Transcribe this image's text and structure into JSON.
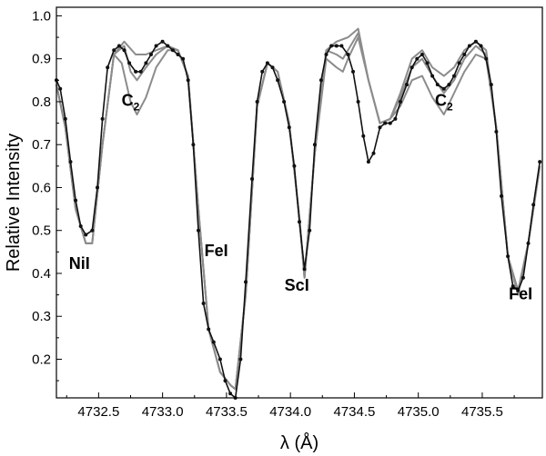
{
  "chart_data": {
    "type": "line",
    "xlabel": "λ (Å)",
    "ylabel": "Relative Intensity",
    "xlim": [
      4732.17,
      4735.97
    ],
    "ylim": [
      0.11,
      1.02
    ],
    "x_ticks": [
      4732.5,
      4733.0,
      4733.5,
      4734.0,
      4734.5,
      4735.0,
      4735.5
    ],
    "x_tick_labels": [
      "4732.5",
      "4733.0",
      "4733.5",
      "4734.0",
      "4734.5",
      "4735.0",
      "4735.5"
    ],
    "y_ticks": [
      0.2,
      0.3,
      0.4,
      0.5,
      0.6,
      0.7,
      0.8,
      0.9,
      1.0
    ],
    "y_tick_labels": [
      "0.2",
      "0.3",
      "0.4",
      "0.5",
      "0.6",
      "0.7",
      "0.8",
      "0.9",
      "1.0"
    ],
    "grid": false,
    "colors": {
      "observed": "#111111",
      "synthetic": "#8c8c8c"
    },
    "annotations": [
      {
        "text": "NiI",
        "x": 4732.35,
        "y": 0.41
      },
      {
        "text": "C",
        "sub": "2",
        "x": 4732.75,
        "y": 0.79
      },
      {
        "text": "FeI",
        "x": 4733.42,
        "y": 0.44
      },
      {
        "text": "ScI",
        "x": 4734.05,
        "y": 0.36
      },
      {
        "text": "C",
        "sub": "2",
        "x": 4735.2,
        "y": 0.79
      },
      {
        "text": "FeI",
        "x": 4735.8,
        "y": 0.34
      }
    ],
    "series": [
      {
        "role": "observed",
        "style": "line-with-dots",
        "points": [
          [
            4732.17,
            0.85
          ],
          [
            4732.2,
            0.83
          ],
          [
            4732.24,
            0.76
          ],
          [
            4732.28,
            0.66
          ],
          [
            4732.32,
            0.57
          ],
          [
            4732.36,
            0.51
          ],
          [
            4732.4,
            0.49
          ],
          [
            4732.45,
            0.5
          ],
          [
            4732.49,
            0.6
          ],
          [
            4732.53,
            0.76
          ],
          [
            4732.57,
            0.88
          ],
          [
            4732.62,
            0.92
          ],
          [
            4732.66,
            0.93
          ],
          [
            4732.7,
            0.92
          ],
          [
            4732.74,
            0.89
          ],
          [
            4732.79,
            0.87
          ],
          [
            4732.83,
            0.87
          ],
          [
            4732.87,
            0.89
          ],
          [
            4732.91,
            0.91
          ],
          [
            4732.95,
            0.93
          ],
          [
            4733.0,
            0.94
          ],
          [
            4733.04,
            0.93
          ],
          [
            4733.08,
            0.92
          ],
          [
            4733.12,
            0.91
          ],
          [
            4733.16,
            0.9
          ],
          [
            4733.2,
            0.85
          ],
          [
            4733.24,
            0.7
          ],
          [
            4733.28,
            0.5
          ],
          [
            4733.32,
            0.33
          ],
          [
            4733.36,
            0.27
          ],
          [
            4733.4,
            0.24
          ],
          [
            4733.45,
            0.2
          ],
          [
            4733.49,
            0.15
          ],
          [
            4733.53,
            0.12
          ],
          [
            4733.57,
            0.11
          ],
          [
            4733.61,
            0.2
          ],
          [
            4733.65,
            0.38
          ],
          [
            4733.7,
            0.62
          ],
          [
            4733.74,
            0.8
          ],
          [
            4733.78,
            0.87
          ],
          [
            4733.82,
            0.89
          ],
          [
            4733.86,
            0.88
          ],
          [
            4733.9,
            0.85
          ],
          [
            4733.95,
            0.8
          ],
          [
            4733.99,
            0.74
          ],
          [
            4734.03,
            0.65
          ],
          [
            4734.07,
            0.52
          ],
          [
            4734.11,
            0.41
          ],
          [
            4734.15,
            0.5
          ],
          [
            4734.19,
            0.7
          ],
          [
            4734.24,
            0.85
          ],
          [
            4734.28,
            0.91
          ],
          [
            4734.32,
            0.93
          ],
          [
            4734.36,
            0.93
          ],
          [
            4734.4,
            0.93
          ],
          [
            4734.45,
            0.91
          ],
          [
            4734.49,
            0.87
          ],
          [
            4734.53,
            0.8
          ],
          [
            4734.57,
            0.72
          ],
          [
            4734.61,
            0.66
          ],
          [
            4734.65,
            0.68
          ],
          [
            4734.7,
            0.74
          ],
          [
            4734.74,
            0.75
          ],
          [
            4734.78,
            0.75
          ],
          [
            4734.82,
            0.76
          ],
          [
            4734.86,
            0.8
          ],
          [
            4734.91,
            0.84
          ],
          [
            4734.95,
            0.88
          ],
          [
            4734.99,
            0.9
          ],
          [
            4735.03,
            0.91
          ],
          [
            4735.07,
            0.89
          ],
          [
            4735.11,
            0.86
          ],
          [
            4735.15,
            0.84
          ],
          [
            4735.2,
            0.83
          ],
          [
            4735.24,
            0.84
          ],
          [
            4735.28,
            0.86
          ],
          [
            4735.32,
            0.89
          ],
          [
            4735.36,
            0.91
          ],
          [
            4735.4,
            0.93
          ],
          [
            4735.45,
            0.94
          ],
          [
            4735.49,
            0.93
          ],
          [
            4735.53,
            0.9
          ],
          [
            4735.57,
            0.84
          ],
          [
            4735.61,
            0.73
          ],
          [
            4735.65,
            0.58
          ],
          [
            4735.7,
            0.44
          ],
          [
            4735.74,
            0.37
          ],
          [
            4735.78,
            0.36
          ],
          [
            4735.82,
            0.39
          ],
          [
            4735.86,
            0.47
          ],
          [
            4735.9,
            0.56
          ],
          [
            4735.95,
            0.66
          ]
        ]
      },
      {
        "role": "synthetic",
        "style": "line",
        "points": [
          [
            4732.17,
            0.84
          ],
          [
            4732.24,
            0.74
          ],
          [
            4732.32,
            0.55
          ],
          [
            4732.4,
            0.47
          ],
          [
            4732.45,
            0.47
          ],
          [
            4732.53,
            0.7
          ],
          [
            4732.62,
            0.91
          ],
          [
            4732.7,
            0.94
          ],
          [
            4732.79,
            0.91
          ],
          [
            4732.87,
            0.91
          ],
          [
            4732.95,
            0.92
          ],
          [
            4733.04,
            0.93
          ],
          [
            4733.12,
            0.92
          ],
          [
            4733.2,
            0.86
          ],
          [
            4733.28,
            0.55
          ],
          [
            4733.36,
            0.27
          ],
          [
            4733.45,
            0.17
          ],
          [
            4733.53,
            0.14
          ],
          [
            4733.57,
            0.13
          ],
          [
            4733.65,
            0.35
          ],
          [
            4733.74,
            0.79
          ],
          [
            4733.82,
            0.89
          ],
          [
            4733.9,
            0.87
          ],
          [
            4733.99,
            0.75
          ],
          [
            4734.07,
            0.53
          ],
          [
            4734.11,
            0.39
          ],
          [
            4734.19,
            0.68
          ],
          [
            4734.28,
            0.92
          ],
          [
            4734.36,
            0.94
          ],
          [
            4734.45,
            0.95
          ],
          [
            4734.53,
            0.97
          ],
          [
            4734.61,
            0.85
          ],
          [
            4734.7,
            0.75
          ],
          [
            4734.78,
            0.76
          ],
          [
            4734.86,
            0.82
          ],
          [
            4734.95,
            0.9
          ],
          [
            4735.03,
            0.92
          ],
          [
            4735.11,
            0.88
          ],
          [
            4735.2,
            0.86
          ],
          [
            4735.28,
            0.88
          ],
          [
            4735.36,
            0.92
          ],
          [
            4735.45,
            0.94
          ],
          [
            4735.53,
            0.92
          ],
          [
            4735.61,
            0.74
          ],
          [
            4735.7,
            0.44
          ],
          [
            4735.78,
            0.35
          ],
          [
            4735.86,
            0.47
          ],
          [
            4735.95,
            0.65
          ]
        ]
      },
      {
        "role": "synthetic",
        "style": "line",
        "points": [
          [
            4732.17,
            0.84
          ],
          [
            4732.24,
            0.74
          ],
          [
            4732.32,
            0.55
          ],
          [
            4732.4,
            0.47
          ],
          [
            4732.45,
            0.47
          ],
          [
            4732.53,
            0.7
          ],
          [
            4732.62,
            0.91
          ],
          [
            4732.7,
            0.93
          ],
          [
            4732.75,
            0.87
          ],
          [
            4732.8,
            0.85
          ],
          [
            4732.87,
            0.88
          ],
          [
            4732.95,
            0.91
          ],
          [
            4733.04,
            0.93
          ],
          [
            4733.12,
            0.92
          ],
          [
            4733.2,
            0.86
          ],
          [
            4733.28,
            0.55
          ],
          [
            4733.36,
            0.27
          ],
          [
            4733.45,
            0.17
          ],
          [
            4733.53,
            0.14
          ],
          [
            4733.57,
            0.13
          ],
          [
            4733.65,
            0.35
          ],
          [
            4733.74,
            0.79
          ],
          [
            4733.82,
            0.89
          ],
          [
            4733.9,
            0.87
          ],
          [
            4733.99,
            0.75
          ],
          [
            4734.07,
            0.53
          ],
          [
            4734.11,
            0.39
          ],
          [
            4734.19,
            0.68
          ],
          [
            4734.28,
            0.92
          ],
          [
            4734.36,
            0.91
          ],
          [
            4734.41,
            0.9
          ],
          [
            4734.45,
            0.92
          ],
          [
            4734.53,
            0.96
          ],
          [
            4734.61,
            0.85
          ],
          [
            4734.7,
            0.75
          ],
          [
            4734.78,
            0.76
          ],
          [
            4734.86,
            0.81
          ],
          [
            4734.95,
            0.88
          ],
          [
            4735.03,
            0.9
          ],
          [
            4735.11,
            0.86
          ],
          [
            4735.2,
            0.82
          ],
          [
            4735.28,
            0.85
          ],
          [
            4735.36,
            0.9
          ],
          [
            4735.45,
            0.93
          ],
          [
            4735.53,
            0.91
          ],
          [
            4735.61,
            0.74
          ],
          [
            4735.7,
            0.44
          ],
          [
            4735.78,
            0.36
          ],
          [
            4735.86,
            0.47
          ],
          [
            4735.95,
            0.65
          ]
        ]
      },
      {
        "role": "synthetic",
        "style": "line",
        "points": [
          [
            4732.17,
            0.84
          ],
          [
            4732.24,
            0.74
          ],
          [
            4732.32,
            0.55
          ],
          [
            4732.4,
            0.47
          ],
          [
            4732.45,
            0.47
          ],
          [
            4732.53,
            0.7
          ],
          [
            4732.62,
            0.91
          ],
          [
            4732.68,
            0.89
          ],
          [
            4732.75,
            0.8
          ],
          [
            4732.8,
            0.77
          ],
          [
            4732.87,
            0.81
          ],
          [
            4732.95,
            0.88
          ],
          [
            4733.04,
            0.92
          ],
          [
            4733.12,
            0.92
          ],
          [
            4733.2,
            0.86
          ],
          [
            4733.28,
            0.55
          ],
          [
            4733.36,
            0.27
          ],
          [
            4733.45,
            0.17
          ],
          [
            4733.53,
            0.14
          ],
          [
            4733.57,
            0.13
          ],
          [
            4733.65,
            0.35
          ],
          [
            4733.74,
            0.79
          ],
          [
            4733.82,
            0.89
          ],
          [
            4733.9,
            0.87
          ],
          [
            4733.99,
            0.75
          ],
          [
            4734.07,
            0.53
          ],
          [
            4734.11,
            0.39
          ],
          [
            4734.19,
            0.68
          ],
          [
            4734.28,
            0.9
          ],
          [
            4734.36,
            0.88
          ],
          [
            4734.41,
            0.87
          ],
          [
            4734.45,
            0.9
          ],
          [
            4734.53,
            0.95
          ],
          [
            4734.61,
            0.85
          ],
          [
            4734.7,
            0.75
          ],
          [
            4734.78,
            0.76
          ],
          [
            4734.86,
            0.79
          ],
          [
            4734.95,
            0.85
          ],
          [
            4735.03,
            0.86
          ],
          [
            4735.11,
            0.81
          ],
          [
            4735.2,
            0.77
          ],
          [
            4735.28,
            0.82
          ],
          [
            4735.36,
            0.87
          ],
          [
            4735.45,
            0.91
          ],
          [
            4735.53,
            0.9
          ],
          [
            4735.61,
            0.74
          ],
          [
            4735.7,
            0.44
          ],
          [
            4735.78,
            0.36
          ],
          [
            4735.86,
            0.47
          ],
          [
            4735.95,
            0.65
          ]
        ]
      }
    ]
  }
}
